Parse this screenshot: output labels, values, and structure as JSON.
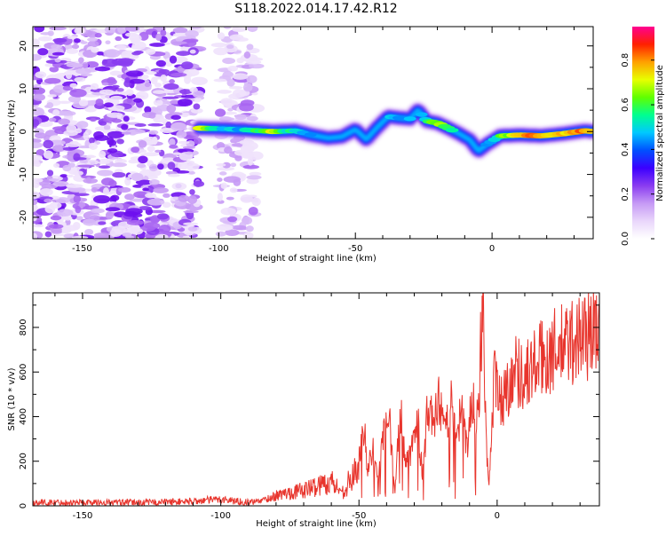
{
  "title": "S118.2022.014.17.42.R12",
  "colors": {
    "snr_line": "#e8352d",
    "axes": "#000000",
    "colormap": [
      "#ffffff",
      "#e9d6fb",
      "#c69af5",
      "#8a3cf0",
      "#3b00ff",
      "#0050ff",
      "#00c8ff",
      "#00ff90",
      "#60ff00",
      "#e8ff00",
      "#ffa000",
      "#ff2000",
      "#ff0090"
    ]
  },
  "chart_data": [
    {
      "type": "heatmap",
      "title": "S118.2022.014.17.42.R12",
      "xlabel": "Height of straight line (km)",
      "ylabel": "Frequency (Hz)",
      "xlim": [
        -168,
        37
      ],
      "ylim": [
        -25,
        24.5
      ],
      "xticks": [
        -150,
        -100,
        -50,
        0
      ],
      "yticks": [
        -20,
        -10,
        0,
        10,
        20
      ],
      "noise_region": [
        -168,
        -107
      ],
      "sparse_noise_region": [
        -100,
        -86
      ],
      "ridge": {
        "x": [
          -107,
          -100,
          -90,
          -80,
          -72,
          -66,
          -60,
          -55,
          -50,
          -46,
          -42,
          -38,
          -34,
          -30,
          -27,
          -24,
          -20,
          -16,
          -12,
          -8,
          -5,
          -2,
          3,
          10,
          18,
          26,
          34,
          37
        ],
        "freq": [
          0.8,
          0.7,
          0.4,
          0.0,
          0.2,
          -0.8,
          -1.5,
          -1.2,
          0.5,
          -1.8,
          1.0,
          3.5,
          3.2,
          3.0,
          5.0,
          2.5,
          2.0,
          0.8,
          -0.5,
          -2.0,
          -4.5,
          -3.0,
          -1.0,
          -0.8,
          -1.0,
          -0.5,
          0.2,
          0.0
        ],
        "amplitude": [
          0.8,
          0.45,
          0.5,
          0.75,
          0.5,
          0.45,
          0.3,
          0.35,
          0.4,
          0.3,
          0.35,
          0.45,
          0.5,
          0.45,
          0.4,
          0.55,
          0.7,
          0.6,
          0.4,
          0.25,
          0.3,
          0.45,
          0.6,
          0.8,
          0.85,
          0.8,
          0.85,
          0.7
        ]
      },
      "colorbar": {
        "label": "Normalized spectral amplitude",
        "range": [
          0,
          0.95
        ],
        "ticks": [
          0.0,
          0.2,
          0.4,
          0.6,
          0.8
        ],
        "tick_labels": [
          "0.0",
          "0.2",
          "0.4",
          "0.6",
          "0.8"
        ]
      }
    },
    {
      "type": "line",
      "xlabel": "Height of straight line (km)",
      "ylabel": "SNR (10 * v/v)",
      "xlim": [
        -168,
        37
      ],
      "ylim": [
        0,
        955
      ],
      "xticks": [
        -150,
        -100,
        -50,
        0
      ],
      "yticks": [
        0,
        200,
        400,
        600,
        800
      ],
      "series": [
        {
          "x": [
            -168,
            -150,
            -130,
            -110,
            -100,
            -90,
            -85,
            -80,
            -75,
            -70,
            -65,
            -60,
            -56,
            -54,
            -52,
            -50,
            -48,
            -47,
            -45,
            -43,
            -41,
            -39,
            -37,
            -35,
            -33,
            -31,
            -29,
            -27,
            -25,
            -23,
            -21,
            -19,
            -17,
            -15,
            -13,
            -11,
            -9,
            -7,
            -5,
            -4,
            -3,
            -1,
            1,
            3,
            6,
            10,
            15,
            20,
            25,
            30,
            37
          ],
          "y": [
            15,
            15,
            15,
            20,
            30,
            15,
            25,
            45,
            60,
            70,
            90,
            110,
            60,
            100,
            130,
            200,
            360,
            150,
            250,
            120,
            320,
            380,
            60,
            440,
            180,
            240,
            420,
            130,
            460,
            350,
            470,
            300,
            510,
            280,
            420,
            260,
            480,
            400,
            960,
            300,
            100,
            580,
            470,
            500,
            620,
            580,
            650,
            690,
            720,
            760,
            790
          ]
        }
      ]
    }
  ]
}
